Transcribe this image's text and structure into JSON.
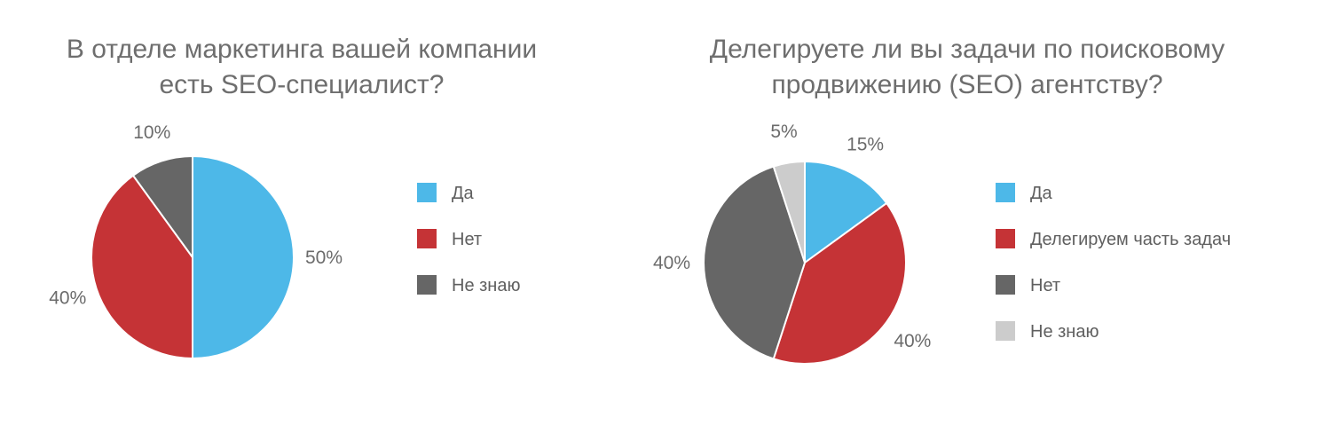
{
  "chart_data": [
    {
      "type": "pie",
      "title": "В отделе маркетинга вашей компании есть SEO-специалист?",
      "title_lines": [
        "В отделе маркетинга вашей компании",
        "есть SEO-специалист?"
      ],
      "slices": [
        {
          "label": "Да",
          "value": 50,
          "display": "50%",
          "color": "#4db8e8"
        },
        {
          "label": "Нет",
          "value": 40,
          "display": "40%",
          "color": "#c53336"
        },
        {
          "label": "Не знаю",
          "value": 10,
          "display": "10%",
          "color": "#666666"
        }
      ],
      "legend_position": "right"
    },
    {
      "type": "pie",
      "title": "Делегируете ли вы задачи по поисковому продвижению (SEO) агентству?",
      "title_lines": [
        "Делегируете ли вы задачи по поисковому",
        "продвижению (SEO) агентству?"
      ],
      "slices": [
        {
          "label": "Да",
          "value": 15,
          "display": "15%",
          "color": "#4db8e8"
        },
        {
          "label": "Делегируем часть задач",
          "value": 40,
          "display": "40%",
          "color": "#c53336"
        },
        {
          "label": "Нет",
          "value": 40,
          "display": "40%",
          "color": "#666666"
        },
        {
          "label": "Не знаю",
          "value": 5,
          "display": "5%",
          "color": "#cccccc"
        }
      ],
      "legend_position": "right"
    }
  ]
}
